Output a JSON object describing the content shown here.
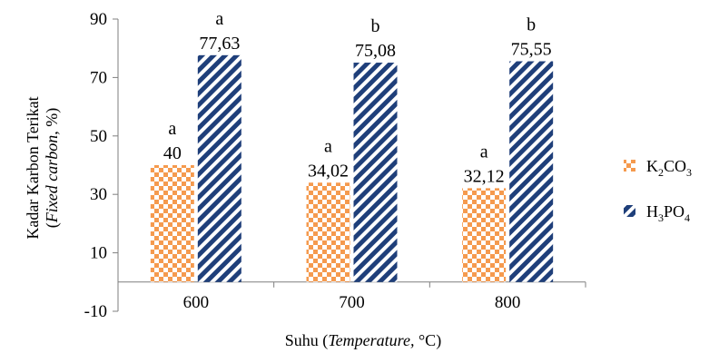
{
  "chart_data": {
    "type": "bar",
    "categories": [
      "600",
      "700",
      "800"
    ],
    "series": [
      {
        "name": "K2CO3",
        "name_parts": {
          "base1": "K",
          "sub1": "2",
          "base2": "CO",
          "sub2": "3"
        },
        "values": [
          40,
          34.02,
          32.12
        ],
        "value_labels": [
          "40",
          "34,02",
          "32,12"
        ],
        "letters": [
          "a",
          "a",
          "a"
        ],
        "color": "#F59A4E",
        "pattern": "checker"
      },
      {
        "name": "H3PO4",
        "name_parts": {
          "base1": "H",
          "sub1": "3",
          "base2": "PO",
          "sub2": "4"
        },
        "values": [
          77.63,
          75.08,
          75.55
        ],
        "value_labels": [
          "77,63",
          "75,08",
          "75,55"
        ],
        "letters": [
          "a",
          "b",
          "b"
        ],
        "color": "#1F3F7A",
        "pattern": "diagonal-stripes"
      }
    ],
    "yticks": [
      "-10",
      "10",
      "30",
      "50",
      "70",
      "90"
    ],
    "ylim": [
      -10,
      90
    ],
    "ylabel_line1": "Kadar Karbon Terikat",
    "ylabel_line2": {
      "open": "(",
      "italic": "Fixed carbon",
      "close": ", %)"
    },
    "xlabel": {
      "prefix": "Suhu (",
      "italic": "Temperature,",
      "suffix": " °C)"
    },
    "grid": false,
    "legend": "right"
  }
}
